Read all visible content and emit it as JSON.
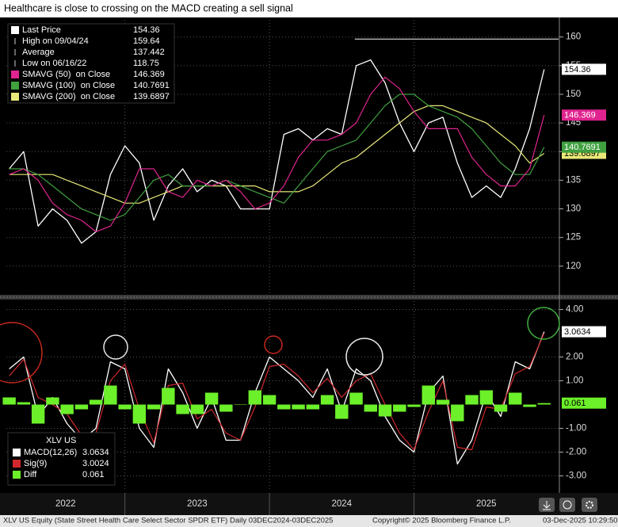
{
  "title": "Healthcare is close to crossing on the MACD creating a sell signal",
  "chart_data": [
    {
      "type": "line",
      "x": [
        2022.2,
        2022.3,
        2022.4,
        2022.5,
        2022.6,
        2022.7,
        2022.8,
        2022.9,
        2023.0,
        2023.1,
        2023.2,
        2023.3,
        2023.4,
        2023.5,
        2023.6,
        2023.7,
        2023.8,
        2023.9,
        2024.0,
        2024.1,
        2024.2,
        2024.3,
        2024.4,
        2024.5,
        2024.6,
        2024.7,
        2024.8,
        2024.9,
        2025.0,
        2025.1,
        2025.2,
        2025.3,
        2025.4,
        2025.5,
        2025.6,
        2025.7,
        2025.8,
        2025.9
      ],
      "xlim": [
        2022.18,
        2026.0
      ],
      "xticks": [
        2022,
        2023,
        2024,
        2025
      ],
      "ylim": [
        115,
        163
      ],
      "yticks": [
        120,
        125,
        130,
        135,
        140,
        145,
        150,
        155,
        160
      ],
      "grid": true,
      "series": [
        {
          "name": "Last Price",
          "color": "#ffffff",
          "value_tag": true,
          "values": [
            137,
            140,
            127,
            130,
            128,
            124,
            126,
            136,
            141,
            138,
            128,
            134,
            137,
            133,
            135,
            134,
            130,
            130,
            130,
            143,
            144,
            142,
            144,
            143,
            155,
            156,
            152,
            145,
            140,
            145,
            146,
            138,
            132,
            134,
            132,
            137,
            144,
            154.36
          ]
        },
        {
          "name": "SMAVG (50)  on Close",
          "color": "#e0248f",
          "value_tag": true,
          "values": [
            136,
            137,
            135,
            131,
            129,
            128,
            126,
            127,
            131,
            137,
            137,
            133,
            132,
            135,
            134,
            135,
            133,
            130,
            131,
            134,
            139,
            142,
            142,
            143,
            145,
            150,
            153,
            151,
            147,
            144,
            144,
            144,
            139,
            136,
            134,
            134,
            137,
            146.369
          ]
        },
        {
          "name": "SMAVG (100)  on Close",
          "color": "#3fa03f",
          "value_tag": true,
          "values": [
            137,
            137,
            136,
            134,
            132,
            130,
            129,
            128,
            129,
            132,
            135,
            136,
            134,
            134,
            134,
            135,
            134,
            133,
            132,
            131,
            134,
            137,
            140,
            141,
            142,
            145,
            148,
            150,
            150,
            148,
            147,
            146,
            144,
            141,
            138,
            136,
            136,
            140.7691
          ]
        },
        {
          "name": "SMAVG (200)  on Close",
          "color": "#e8e878",
          "value_tag": true,
          "values": [
            136,
            136,
            136,
            136,
            135,
            134,
            133,
            132,
            131,
            131,
            132,
            133,
            134,
            134,
            134,
            134,
            134,
            134,
            133,
            133,
            133,
            134,
            136,
            138,
            139,
            141,
            143,
            145,
            147,
            148,
            148,
            147,
            146,
            145,
            143,
            141,
            138,
            139.6897
          ]
        }
      ],
      "stats": [
        {
          "label": "High on 09/04/24",
          "value": 159.64
        },
        {
          "label": "Average",
          "value": 137.442
        },
        {
          "label": "Low on 06/16/22",
          "value": 118.75
        }
      ]
    },
    {
      "type": "macd",
      "legend_title": "XLV US",
      "x": [
        2022.2,
        2022.3,
        2022.4,
        2022.5,
        2022.6,
        2022.7,
        2022.8,
        2022.9,
        2023.0,
        2023.1,
        2023.2,
        2023.3,
        2023.4,
        2023.5,
        2023.6,
        2023.7,
        2023.8,
        2023.9,
        2024.0,
        2024.1,
        2024.2,
        2024.3,
        2024.4,
        2024.5,
        2024.6,
        2024.7,
        2024.8,
        2024.9,
        2025.0,
        2025.1,
        2025.2,
        2025.3,
        2025.4,
        2025.5,
        2025.6,
        2025.7,
        2025.8,
        2025.9
      ],
      "xlim": [
        2022.18,
        2026.0
      ],
      "xticks": [
        2022,
        2023,
        2024,
        2025
      ],
      "ylim": [
        -3.65,
        4.35
      ],
      "yticks": [
        {
          "value": 4,
          "label": "4.00"
        },
        {
          "value": 2,
          "label": "2.00"
        },
        {
          "value": 1,
          "label": "1.00"
        },
        {
          "value": -1,
          "label": "-1.00"
        },
        {
          "value": -2,
          "label": "-2.00"
        },
        {
          "value": -3,
          "label": "-3.00"
        }
      ],
      "grid": true,
      "series": [
        {
          "name": "MACD(12,26)",
          "color": "#ffffff",
          "value_tag": true,
          "values": [
            1.5,
            2.0,
            -0.5,
            0.3,
            -0.8,
            -1.5,
            -1.0,
            1.8,
            1.5,
            -1.0,
            -1.8,
            1.5,
            0.5,
            -1.0,
            0.3,
            -1.5,
            -1.5,
            0.5,
            2.0,
            1.5,
            1.0,
            0.3,
            1.5,
            -0.3,
            1.5,
            1.0,
            -0.5,
            -1.5,
            -2.0,
            0.5,
            1.2,
            -2.5,
            -1.5,
            0.5,
            -0.5,
            1.8,
            1.5,
            3.0634
          ]
        },
        {
          "name": "Sig(9)",
          "color": "#d0282c",
          "value_tag": false,
          "values": [
            1.2,
            1.9,
            0.3,
            0.0,
            -0.4,
            -1.3,
            -1.2,
            1.0,
            1.7,
            -0.2,
            -1.6,
            0.8,
            0.9,
            -0.6,
            -0.2,
            -1.2,
            -1.5,
            -0.1,
            1.6,
            1.7,
            1.2,
            0.5,
            1.1,
            0.3,
            1.0,
            1.3,
            0.0,
            -1.2,
            -1.9,
            -0.3,
            1.0,
            -1.8,
            -1.9,
            -0.1,
            -0.2,
            1.3,
            1.6,
            3.0024
          ]
        },
        {
          "name": "Diff",
          "color": "#6cf02a",
          "value_tag": true,
          "style": "bars",
          "values": [
            0.3,
            0.1,
            -0.8,
            0.3,
            -0.4,
            -0.2,
            0.2,
            0.8,
            -0.2,
            -0.8,
            -0.2,
            0.7,
            -0.4,
            -0.4,
            0.5,
            -0.3,
            0.0,
            0.6,
            0.4,
            -0.2,
            -0.2,
            -0.2,
            0.4,
            -0.6,
            0.5,
            -0.3,
            -0.5,
            -0.3,
            -0.1,
            0.8,
            0.2,
            -0.7,
            0.4,
            0.6,
            -0.3,
            0.5,
            -0.1,
            0.061
          ]
        }
      ]
    }
  ],
  "footer": {
    "description": "XLV US Equity (State Street Health Care Select Sector SPDR ETF) Daily 03DEC2024-03DEC2025",
    "copyright": "Copyright© 2025 Bloomberg Finance L.P.",
    "timestamp": "03-Dec-2025 10:29:50"
  }
}
